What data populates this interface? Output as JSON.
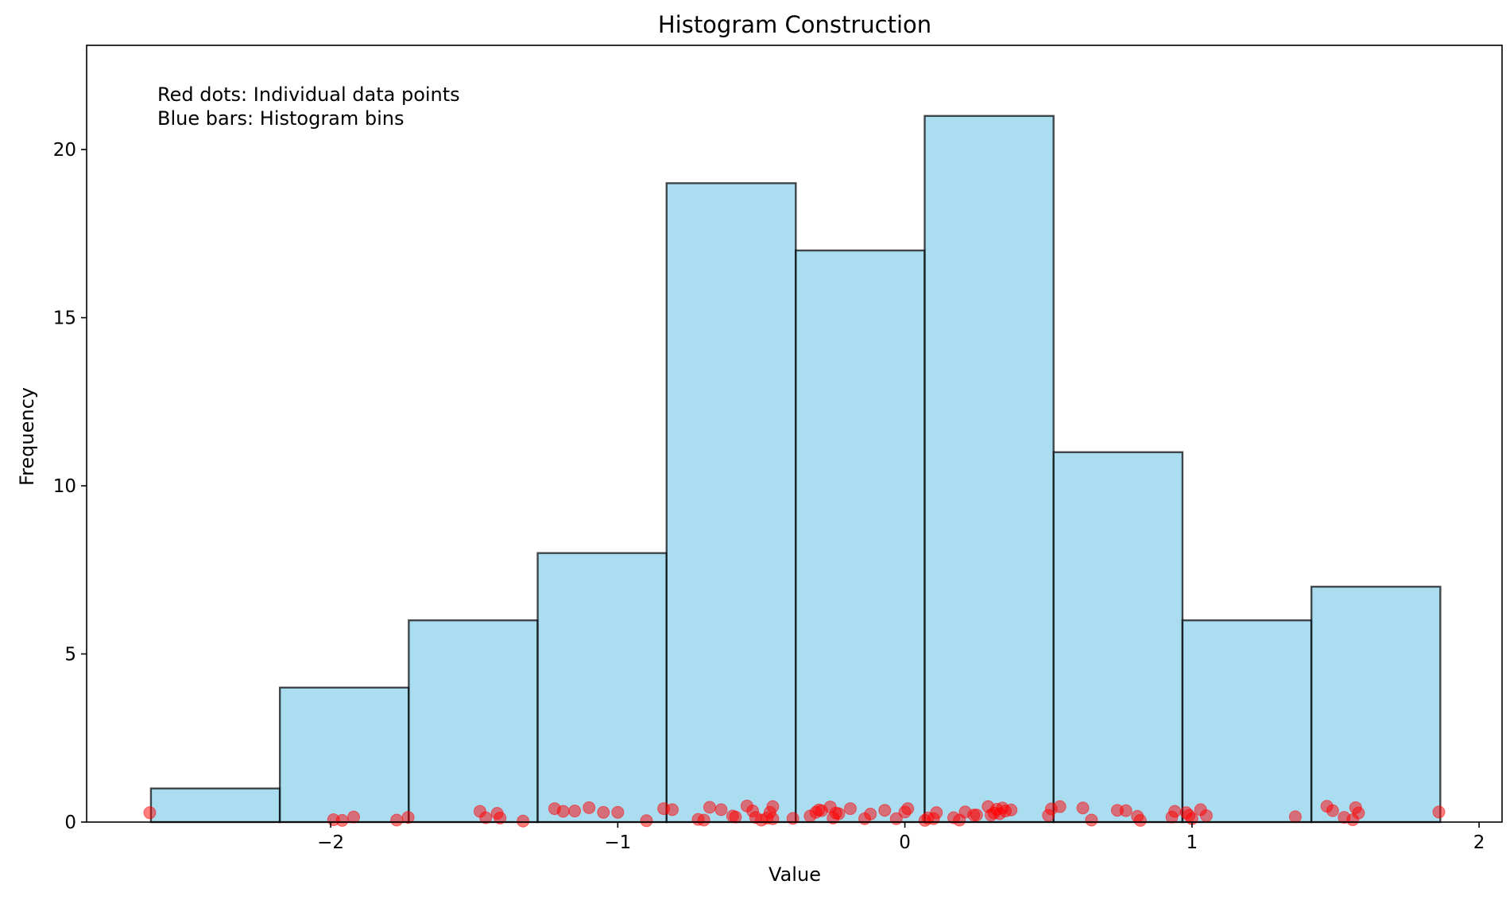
{
  "chart_data": {
    "type": "bar",
    "title": "Histogram Construction",
    "xlabel": "Value",
    "ylabel": "Frequency",
    "xlim": [
      -2.85,
      2.08
    ],
    "ylim": [
      0,
      23.1
    ],
    "xticks": [
      -2,
      -1,
      0,
      1,
      2
    ],
    "yticks": [
      0,
      5,
      10,
      15,
      20
    ],
    "xtick_labels": [
      "−2",
      "−1",
      "0",
      "1",
      "2"
    ],
    "ytick_labels": [
      "0",
      "5",
      "10",
      "15",
      "20"
    ],
    "grid": false,
    "bins": {
      "edges": [
        -2.626,
        -2.177,
        -1.728,
        -1.279,
        -0.83,
        -0.38,
        0.069,
        0.518,
        0.967,
        1.416,
        1.865
      ],
      "counts": [
        1,
        4,
        6,
        8,
        19,
        17,
        21,
        11,
        6,
        7
      ],
      "fill_color": "#87ceeb",
      "edge_color": "#000000"
    },
    "points": {
      "color": "#ff0000",
      "x": [
        -2.63,
        -1.99,
        -1.96,
        -1.92,
        -1.77,
        -1.73,
        -1.48,
        -1.46,
        -1.42,
        -1.41,
        -1.33,
        -1.22,
        -1.19,
        -1.15,
        -1.1,
        -1.05,
        -1.0,
        -0.9,
        -0.84,
        -0.81,
        -0.72,
        -0.7,
        -0.68,
        -0.64,
        -0.6,
        -0.59,
        -0.55,
        -0.53,
        -0.52,
        -0.5,
        -0.48,
        -0.47,
        -0.46,
        -0.46,
        -0.39,
        -0.33,
        -0.31,
        -0.3,
        -0.29,
        -0.26,
        -0.25,
        -0.24,
        -0.23,
        -0.19,
        -0.14,
        -0.12,
        -0.07,
        -0.03,
        0.0,
        0.01,
        0.07,
        0.08,
        0.1,
        0.11,
        0.17,
        0.19,
        0.21,
        0.24,
        0.25,
        0.29,
        0.3,
        0.31,
        0.32,
        0.33,
        0.34,
        0.35,
        0.37,
        0.5,
        0.51,
        0.54,
        0.62,
        0.65,
        0.74,
        0.77,
        0.81,
        0.82,
        0.93,
        0.94,
        0.98,
        0.99,
        1.0,
        1.03,
        1.05,
        1.36,
        1.47,
        1.49,
        1.53,
        1.56,
        1.57,
        1.58,
        1.86
      ],
      "y": [
        0.28,
        0.07,
        0.05,
        0.15,
        0.06,
        0.14,
        0.32,
        0.13,
        0.26,
        0.12,
        0.03,
        0.4,
        0.32,
        0.33,
        0.43,
        0.29,
        0.29,
        0.04,
        0.4,
        0.37,
        0.08,
        0.06,
        0.44,
        0.37,
        0.18,
        0.15,
        0.48,
        0.33,
        0.14,
        0.06,
        0.12,
        0.29,
        0.1,
        0.46,
        0.11,
        0.18,
        0.29,
        0.36,
        0.34,
        0.45,
        0.12,
        0.27,
        0.25,
        0.4,
        0.1,
        0.24,
        0.35,
        0.1,
        0.3,
        0.4,
        0.05,
        0.12,
        0.1,
        0.28,
        0.13,
        0.06,
        0.3,
        0.21,
        0.21,
        0.46,
        0.21,
        0.27,
        0.38,
        0.25,
        0.42,
        0.33,
        0.36,
        0.2,
        0.39,
        0.46,
        0.42,
        0.06,
        0.35,
        0.34,
        0.17,
        0.05,
        0.15,
        0.32,
        0.28,
        0.2,
        0.1,
        0.37,
        0.19,
        0.16,
        0.47,
        0.34,
        0.14,
        0.07,
        0.43,
        0.27,
        0.3
      ]
    },
    "annotations": [
      "Red dots: Individual data points",
      "Blue bars: Histogram bins"
    ]
  }
}
